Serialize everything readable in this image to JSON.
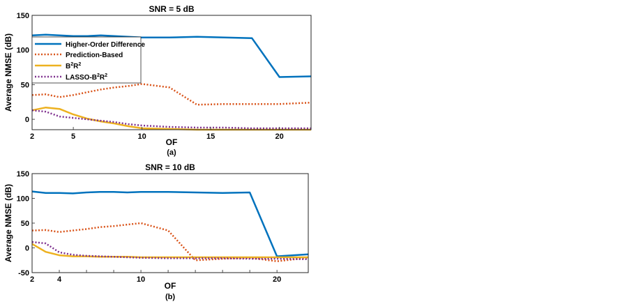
{
  "chart_data": [
    {
      "type": "line",
      "title": "SNR = 5 dB",
      "xlabel": "OF",
      "ylabel": "Average NMSE (dB)",
      "caption": "(a)",
      "xlim": [
        2,
        22.3
      ],
      "ylim": [
        -15,
        150
      ],
      "xticks": [
        2,
        5,
        10,
        15,
        20
      ],
      "yticks": [
        0,
        50,
        100,
        150
      ],
      "grid": false,
      "legend_position": "top-left",
      "series": [
        {
          "name": "Higher-Order Difference",
          "color": "#0072BD",
          "style": "solid",
          "x": [
            2,
            3,
            4,
            5,
            6,
            7,
            8,
            9,
            10,
            12,
            14,
            16,
            18,
            20,
            22.3
          ],
          "y": [
            121,
            122,
            121,
            120,
            120,
            121,
            120,
            119,
            118,
            118,
            119,
            118,
            117,
            61,
            62
          ]
        },
        {
          "name": "Prediction-Based",
          "color": "#D95319",
          "style": "dotted",
          "x": [
            2,
            3,
            4,
            5,
            6,
            7,
            8,
            9,
            10,
            12,
            14,
            16,
            18,
            20,
            22.3
          ],
          "y": [
            35,
            36,
            32,
            35,
            39,
            43,
            46,
            48,
            51,
            46,
            21,
            22,
            22,
            22,
            24
          ]
        },
        {
          "name": "B2R2",
          "label_base": "B",
          "label_sup1": "2",
          "label_mid": "R",
          "label_sup2": "2",
          "color": "#EDB120",
          "style": "solid",
          "x": [
            2,
            3,
            4,
            5,
            6,
            7,
            8,
            9,
            10,
            12,
            14,
            16,
            18,
            20,
            22.3
          ],
          "y": [
            13,
            17,
            15,
            7,
            1,
            -3,
            -6,
            -10,
            -13,
            -14,
            -15,
            -15,
            -15,
            -15,
            -15
          ]
        },
        {
          "name": "LASSO-B2R2",
          "label_base": "LASSO-B",
          "label_sup1": "2",
          "label_mid": "R",
          "label_sup2": "2",
          "color": "#7E2F8E",
          "style": "dotted",
          "x": [
            2,
            3,
            4,
            5,
            6,
            7,
            8,
            9,
            10,
            12,
            14,
            16,
            18,
            20,
            22.3
          ],
          "y": [
            13,
            11,
            4,
            2,
            0,
            -2,
            -4,
            -7,
            -9,
            -11,
            -12,
            -12,
            -13,
            -13,
            -13
          ]
        }
      ]
    },
    {
      "type": "line",
      "title": "SNR = 10 dB",
      "xlabel": "OF",
      "ylabel": "Average NMSE (dB)",
      "caption": "(b)",
      "xlim": [
        2,
        22.3
      ],
      "ylim": [
        -50,
        150
      ],
      "xticks": [
        2,
        4,
        6,
        8,
        10,
        12,
        14,
        16,
        18,
        20
      ],
      "xticklabels": [
        "2",
        "4",
        "",
        "",
        "10",
        "",
        "",
        "",
        "",
        "20"
      ],
      "yticks": [
        -50,
        0,
        50,
        100,
        150
      ],
      "grid": false,
      "series": [
        {
          "name": "Higher-Order Difference",
          "color": "#0072BD",
          "style": "solid",
          "x": [
            2,
            3,
            4,
            5,
            6,
            7,
            8,
            9,
            10,
            12,
            14,
            16,
            18,
            20,
            22.3
          ],
          "y": [
            114,
            111,
            111,
            110,
            112,
            113,
            113,
            112,
            113,
            113,
            112,
            111,
            112,
            -17,
            -13
          ]
        },
        {
          "name": "Prediction-Based",
          "color": "#D95319",
          "style": "dotted",
          "x": [
            2,
            3,
            4,
            5,
            6,
            7,
            8,
            9,
            10,
            12,
            14,
            16,
            18,
            20,
            22.3
          ],
          "y": [
            35,
            36,
            32,
            35,
            38,
            42,
            44,
            47,
            50,
            35,
            -25,
            -22,
            -20,
            -27,
            -20
          ]
        },
        {
          "name": "B2R2",
          "color": "#EDB120",
          "style": "solid",
          "x": [
            2,
            3,
            4,
            5,
            6,
            7,
            8,
            9,
            10,
            12,
            14,
            16,
            18,
            20,
            22.3
          ],
          "y": [
            8,
            -8,
            -15,
            -17,
            -17,
            -18,
            -18,
            -18,
            -19,
            -19,
            -19,
            -19,
            -19,
            -19,
            -19
          ]
        },
        {
          "name": "LASSO-B2R2",
          "color": "#7E2F8E",
          "style": "dotted",
          "x": [
            2,
            3,
            4,
            5,
            6,
            7,
            8,
            9,
            10,
            12,
            14,
            16,
            18,
            20,
            22.3
          ],
          "y": [
            12,
            9,
            -9,
            -14,
            -16,
            -17,
            -18,
            -19,
            -20,
            -21,
            -21,
            -21,
            -22,
            -22,
            -23
          ]
        }
      ]
    }
  ]
}
